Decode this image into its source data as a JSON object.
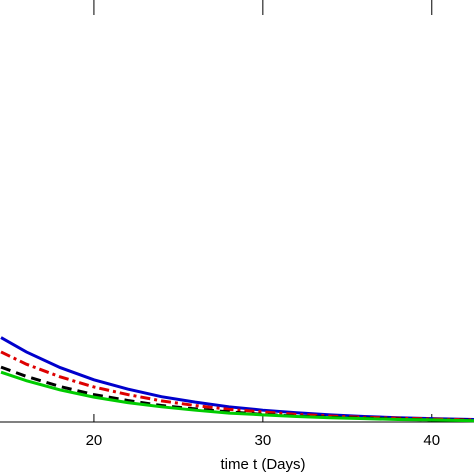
{
  "chart_data": {
    "type": "line",
    "xlabel": "time t (Days)",
    "x": [
      14.5,
      16,
      18,
      20,
      22,
      24,
      26,
      28,
      30,
      32,
      34,
      36,
      38,
      40,
      42.5
    ],
    "xlim": [
      14.44,
      42.5
    ],
    "xticks": [
      20,
      30,
      40
    ],
    "ylim": [
      0,
      1
    ],
    "series": [
      {
        "color": "#0000cc",
        "dash": "solid",
        "values": [
          0.2,
          0.166,
          0.129,
          0.1,
          0.078,
          0.06,
          0.047,
          0.036,
          0.028,
          0.022,
          0.017,
          0.013,
          0.01,
          0.008,
          0.006
        ]
      },
      {
        "color": "#dd0000",
        "dash": "dashdot",
        "values": [
          0.166,
          0.137,
          0.107,
          0.083,
          0.065,
          0.05,
          0.039,
          0.03,
          0.024,
          0.018,
          0.014,
          0.011,
          0.009,
          0.007,
          0.005
        ]
      },
      {
        "color": "#000000",
        "dash": "dashed",
        "values": [
          0.13,
          0.108,
          0.084,
          0.065,
          0.051,
          0.039,
          0.031,
          0.024,
          0.018,
          0.014,
          0.011,
          0.009,
          0.007,
          0.005,
          0.004
        ]
      },
      {
        "color": "#00cc00",
        "dash": "solid",
        "values": [
          0.118,
          0.098,
          0.076,
          0.059,
          0.046,
          0.036,
          0.028,
          0.021,
          0.017,
          0.013,
          0.01,
          0.008,
          0.006,
          0.005,
          0.003
        ]
      }
    ]
  }
}
